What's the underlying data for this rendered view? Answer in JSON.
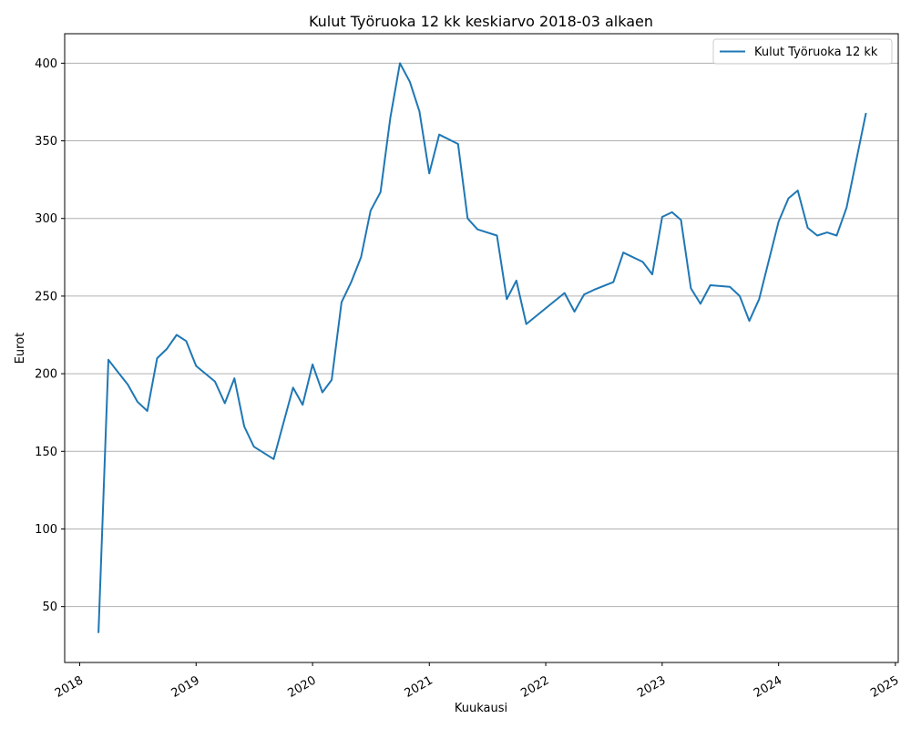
{
  "chart_data": {
    "type": "line",
    "title": "Kulut Työruoka 12 kk keskiarvo 2018-03 alkaen",
    "xlabel": "Kuukausi",
    "ylabel": "Eurot",
    "xlim": [
      "2017-11-15",
      "2025-01-10"
    ],
    "ylim": [
      14,
      419
    ],
    "x_ticks": [
      "2018",
      "2019",
      "2020",
      "2021",
      "2022",
      "2023",
      "2024",
      "2025"
    ],
    "y_ticks": [
      50,
      100,
      150,
      200,
      250,
      300,
      350,
      400
    ],
    "grid": "y",
    "legend_position": "top-right",
    "colors": {
      "line": "#1f77b4",
      "grid": "#b0b0b0"
    },
    "series": [
      {
        "name": "Kulut Työruoka 12 kk",
        "x": [
          "2018-03",
          "2018-04",
          "2018-05",
          "2018-06",
          "2018-07",
          "2018-08",
          "2018-09",
          "2018-10",
          "2018-11",
          "2018-12",
          "2019-01",
          "2019-03",
          "2019-04",
          "2019-05",
          "2019-06",
          "2019-07",
          "2019-09",
          "2019-11",
          "2019-12",
          "2020-01",
          "2020-02",
          "2020-03",
          "2020-04",
          "2020-05",
          "2020-06",
          "2020-07",
          "2020-08",
          "2020-09",
          "2020-10",
          "2020-11",
          "2020-12",
          "2021-01",
          "2021-02",
          "2021-04",
          "2021-05",
          "2021-06",
          "2021-08",
          "2021-09",
          "2021-10",
          "2021-11",
          "2022-03",
          "2022-04",
          "2022-05",
          "2022-06",
          "2022-08",
          "2022-09",
          "2022-11",
          "2022-12",
          "2023-01",
          "2023-02",
          "2023-03",
          "2023-04",
          "2023-05",
          "2023-06",
          "2023-08",
          "2023-09",
          "2023-10",
          "2023-11",
          "2024-01",
          "2024-02",
          "2024-03",
          "2024-04",
          "2024-05",
          "2024-06",
          "2024-07",
          "2024-08",
          "2024-10"
        ],
        "y": [
          33,
          209,
          201,
          193,
          182,
          176,
          210,
          216,
          225,
          221,
          205,
          195,
          181,
          197,
          166,
          153,
          145,
          191,
          180,
          206,
          188,
          196,
          246,
          259,
          275,
          305,
          317,
          365,
          400,
          388,
          369,
          329,
          354,
          348,
          300,
          293,
          289,
          248,
          260,
          232,
          252,
          240,
          251,
          254,
          259,
          278,
          272,
          264,
          301,
          304,
          299,
          255,
          245,
          257,
          256,
          250,
          234,
          248,
          298,
          313,
          318,
          294,
          289,
          291,
          289,
          307,
          368
        ]
      }
    ]
  }
}
